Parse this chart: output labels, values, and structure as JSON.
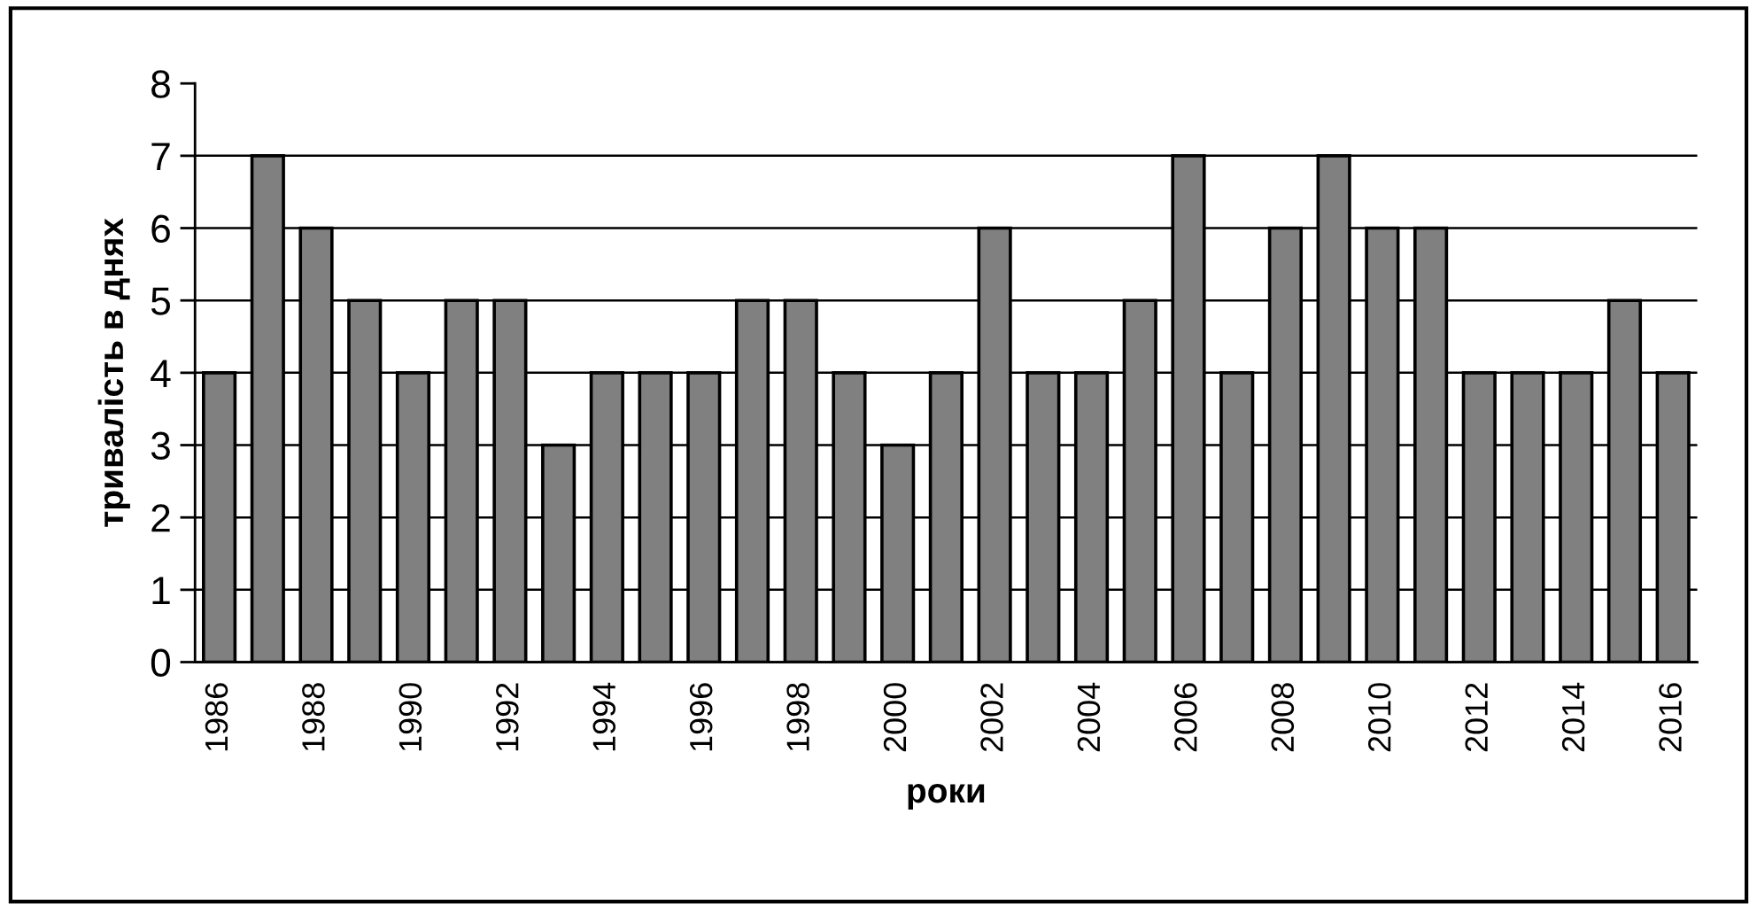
{
  "chart_data": {
    "type": "bar",
    "xlabel": "роки",
    "ylabel": "тривалість в днях",
    "categories": [
      "1986",
      null,
      "1988",
      null,
      "1990",
      null,
      "1992",
      null,
      "1994",
      null,
      "1996",
      null,
      "1998",
      null,
      "2000",
      null,
      "2002",
      null,
      "2004",
      null,
      "2006",
      null,
      "2008",
      null,
      "2010",
      null,
      "2012",
      null,
      "2014",
      null,
      "2016"
    ],
    "values": [
      4,
      7,
      6,
      5,
      4,
      5,
      5,
      3,
      4,
      4,
      4,
      5,
      5,
      4,
      3,
      4,
      6,
      4,
      4,
      5,
      7,
      4,
      6,
      7,
      6,
      6,
      4,
      4,
      4,
      5,
      4
    ],
    "color": "#808080",
    "ylim": [
      0,
      8
    ],
    "yticks": [
      0,
      1,
      2,
      3,
      4,
      5,
      6,
      7,
      8
    ],
    "grid": "y"
  }
}
